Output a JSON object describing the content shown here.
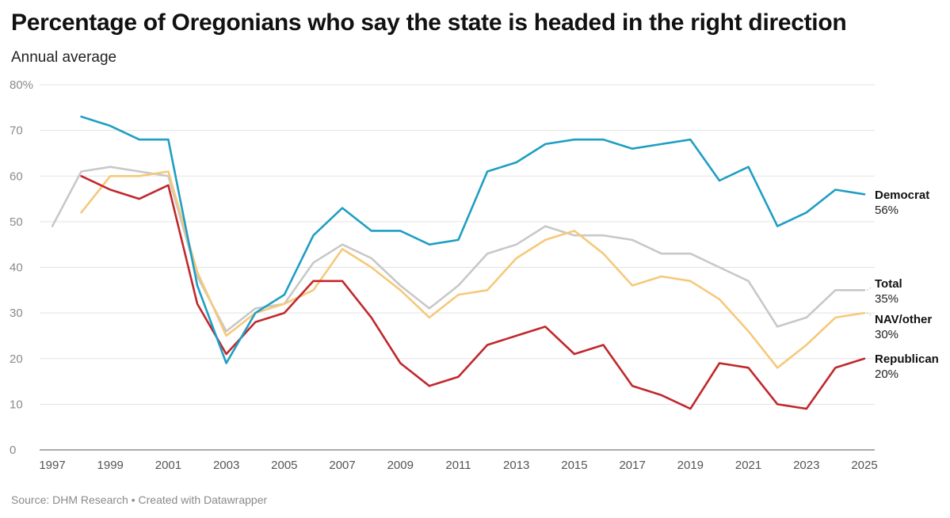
{
  "header": {
    "title": "Percentage of Oregonians who say the state is headed in the right direction",
    "subtitle": "Annual average"
  },
  "footer": {
    "source": "Source: DHM Research • Created with Datawrapper"
  },
  "chart_data": {
    "type": "line",
    "title": "Percentage of Oregonians who say the state is headed in the right direction",
    "subtitle": "Annual average",
    "xlabel": "",
    "ylabel": "",
    "ylim": [
      0,
      80
    ],
    "y_ticks": [
      0,
      10,
      20,
      30,
      40,
      50,
      60,
      70,
      80
    ],
    "y_tick_labels": [
      "0",
      "10",
      "20",
      "30",
      "40",
      "50",
      "60",
      "70",
      "80%"
    ],
    "x_ticks": [
      "1997",
      "1999",
      "2001",
      "2003",
      "2005",
      "2007",
      "2009",
      "2011",
      "2013",
      "2015",
      "2017",
      "2019",
      "2021",
      "2023",
      "2025"
    ],
    "x": [
      1997,
      1998,
      1999,
      2000,
      2001,
      2002,
      2003,
      2004,
      2005,
      2006,
      2007,
      2008,
      2009,
      2010,
      2011,
      2012,
      2013,
      2014,
      2015,
      2016,
      2017,
      2018,
      2019,
      2020,
      2021,
      2022,
      2023,
      2024,
      2025
    ],
    "grid": true,
    "series": [
      {
        "name": "Total",
        "label": "Total",
        "value_label": "35%",
        "color": "#c8c8c8",
        "values": [
          49,
          61,
          62,
          61,
          60,
          38,
          26,
          31,
          32,
          41,
          45,
          42,
          36,
          31,
          36,
          43,
          45,
          49,
          47,
          47,
          46,
          43,
          43,
          40,
          37,
          27,
          29,
          35,
          35
        ]
      },
      {
        "name": "NAV/other",
        "label": "NAV/other",
        "value_label": "30%",
        "color": "#f5c97a",
        "values": [
          null,
          52,
          60,
          60,
          61,
          39,
          25,
          30,
          32,
          35,
          44,
          40,
          35,
          29,
          34,
          35,
          42,
          46,
          48,
          43,
          36,
          38,
          37,
          33,
          26,
          18,
          23,
          29,
          30
        ]
      },
      {
        "name": "Republican",
        "label": "Republican",
        "value_label": "20%",
        "color": "#c0282d",
        "values": [
          null,
          60,
          57,
          55,
          58,
          32,
          21,
          28,
          30,
          37,
          37,
          29,
          19,
          14,
          16,
          23,
          25,
          27,
          21,
          23,
          14,
          12,
          9,
          19,
          18,
          10,
          9,
          18,
          20
        ]
      },
      {
        "name": "Democrat",
        "label": "Democrat",
        "value_label": "56%",
        "color": "#1f9ec3",
        "values": [
          null,
          73,
          71,
          68,
          68,
          36,
          19,
          30,
          34,
          47,
          53,
          48,
          48,
          45,
          46,
          61,
          63,
          67,
          68,
          68,
          66,
          67,
          68,
          59,
          62,
          49,
          52,
          57,
          56
        ]
      }
    ]
  }
}
